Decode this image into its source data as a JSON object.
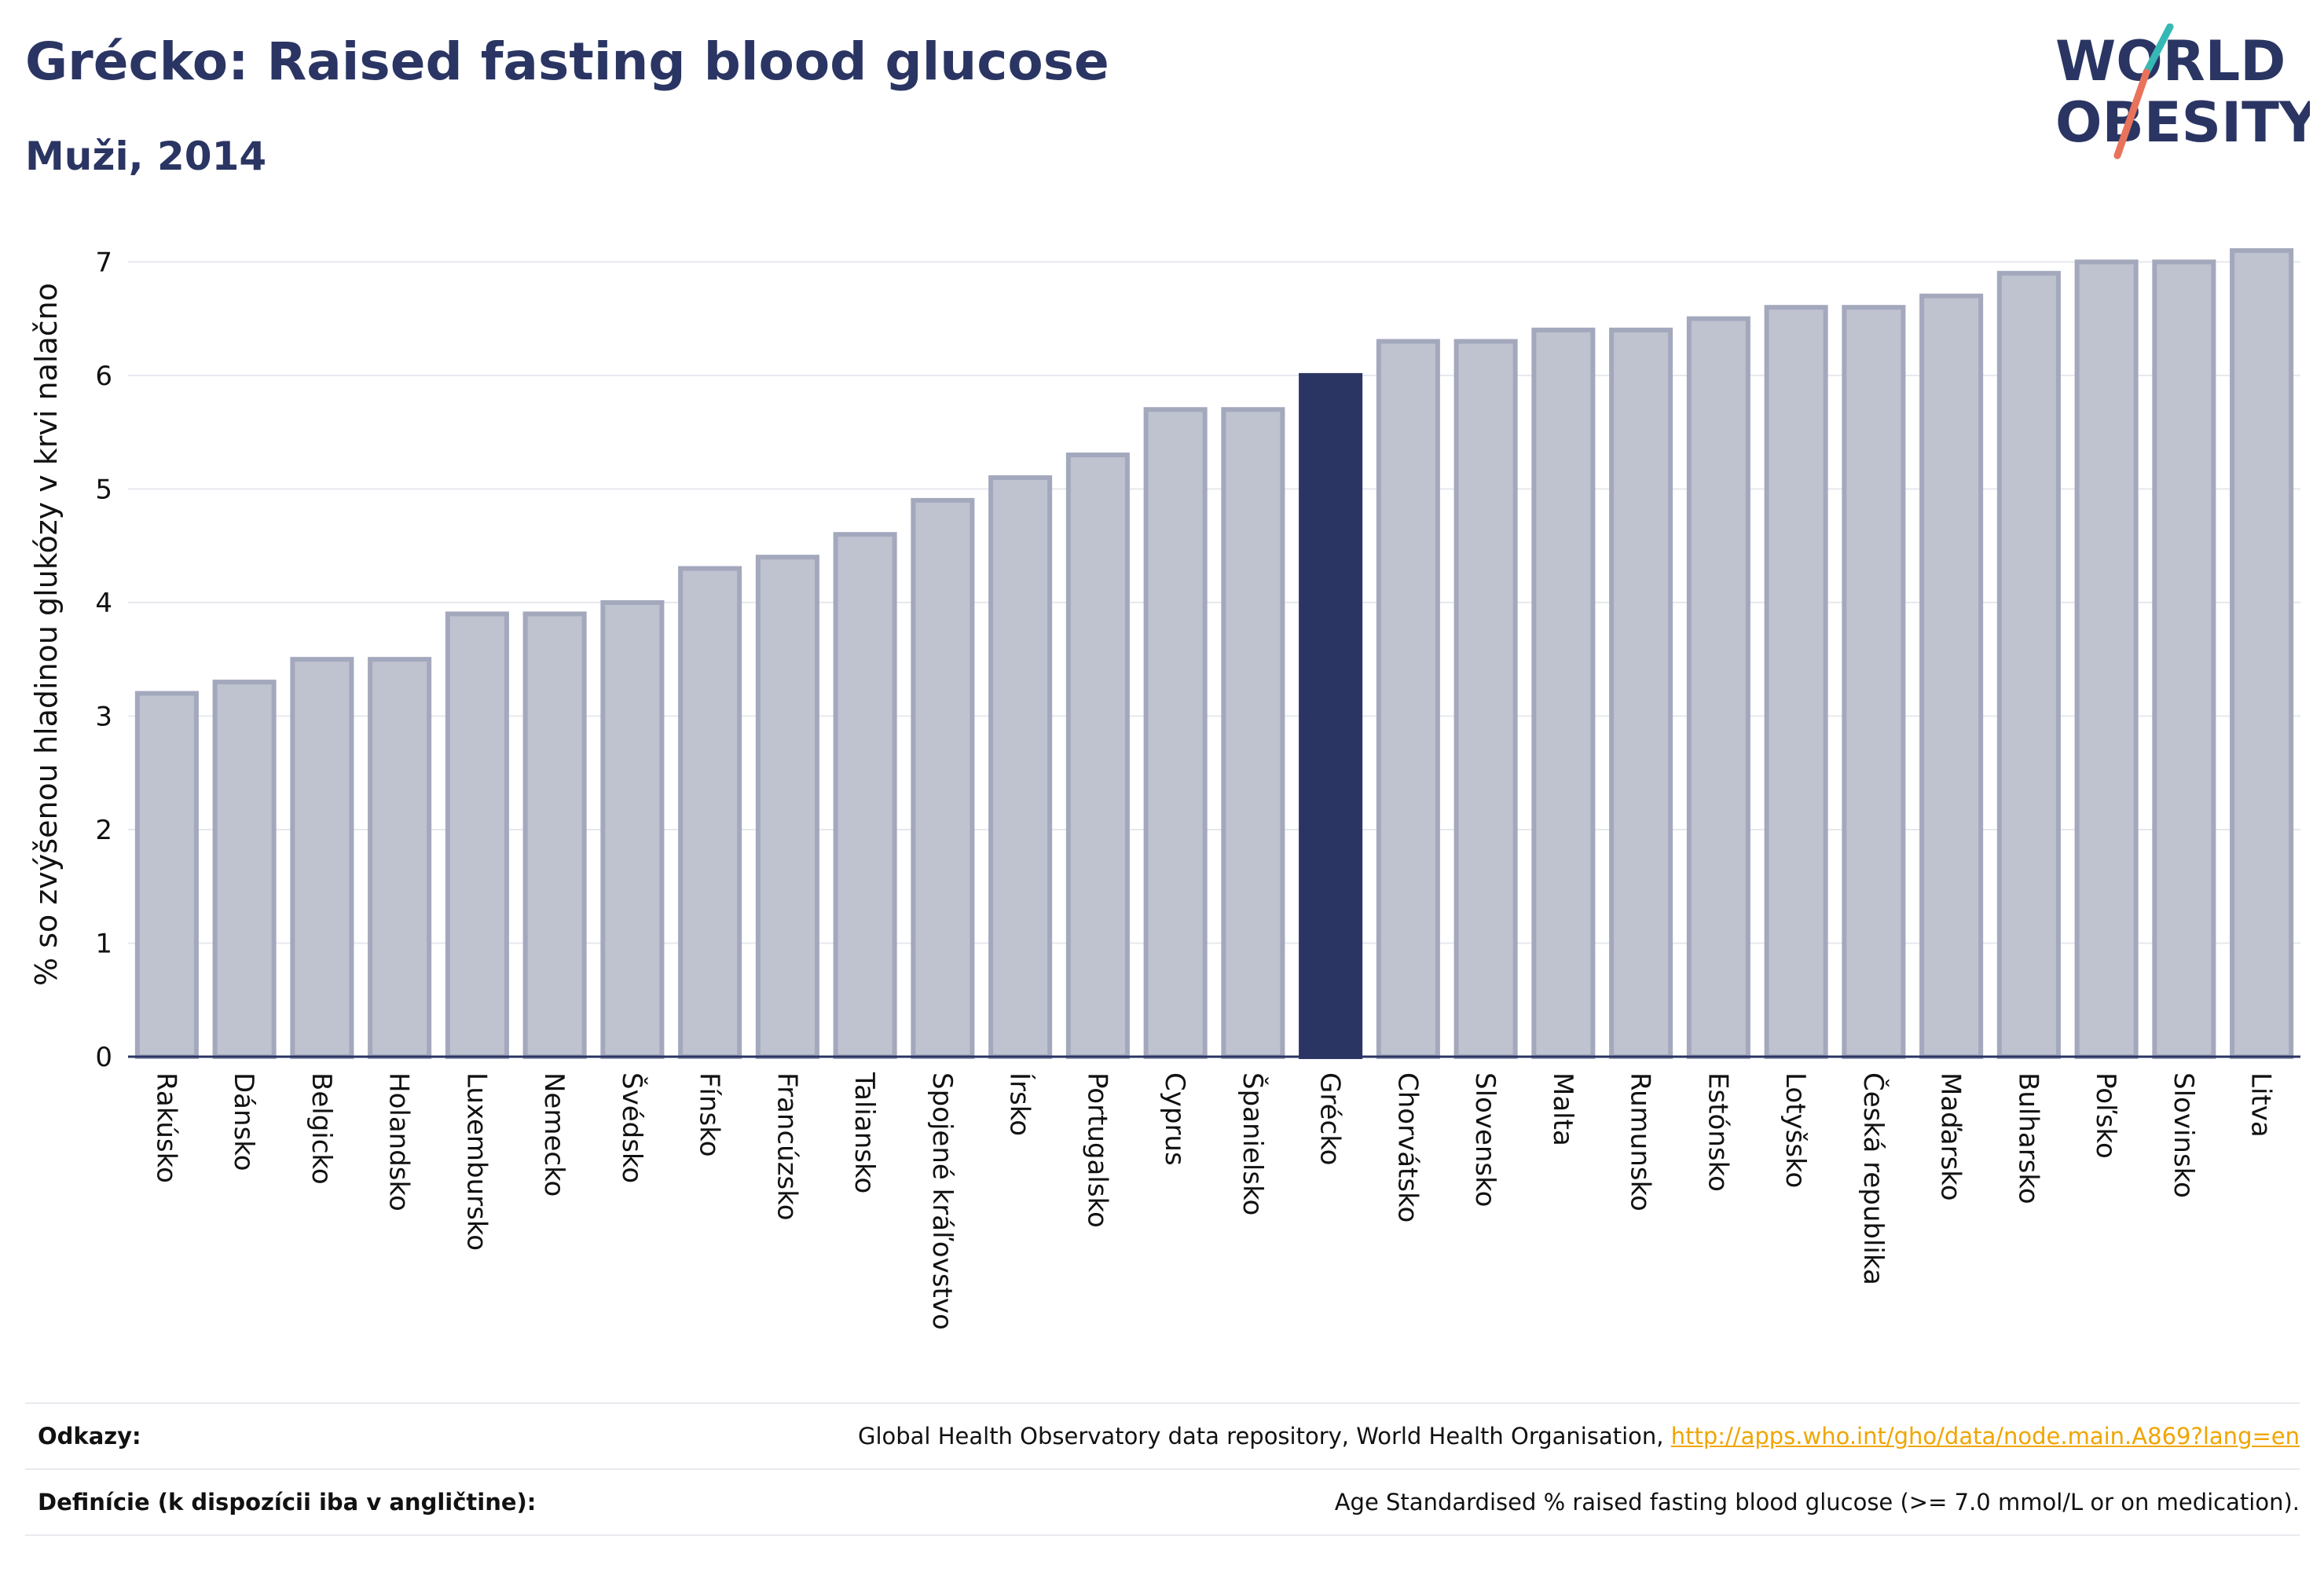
{
  "header": {
    "title": "Grécko: Raised fasting blood glucose",
    "subtitle": "Muži, 2014"
  },
  "logo": {
    "line1": "WORLD",
    "line2": "OBESITY",
    "accent_teal": "#36b8b4",
    "accent_red": "#e8735a",
    "color": "#2a3563"
  },
  "colors": {
    "bar": "#bfc2cf",
    "bar_border": "#a3a8bd",
    "highlight": "#2a3563",
    "grid": "#e6e8ee",
    "axis": "#2a3563"
  },
  "chart_data": {
    "type": "bar",
    "ylabel": "% so zvýšenou hladinou glukózy v krvi nalačno",
    "ylim": [
      0,
      7.3
    ],
    "yticks": [
      0,
      1,
      2,
      3,
      4,
      5,
      6,
      7
    ],
    "highlight": "Grécko",
    "grid": true,
    "categories": [
      "Rakúsko",
      "Dánsko",
      "Belgicko",
      "Holandsko",
      "Luxembursko",
      "Nemecko",
      "Švédsko",
      "Fínsko",
      "Francúzsko",
      "Taliansko",
      "Spojené kráľovstvo",
      "Írsko",
      "Portugalsko",
      "Cyprus",
      "Španielsko",
      "Grécko",
      "Chorvátsko",
      "Slovensko",
      "Malta",
      "Rumunsko",
      "Estónsko",
      "Lotyšsko",
      "Česká republika",
      "Maďarsko",
      "Bulharsko",
      "Poľsko",
      "Slovinsko",
      "Litva"
    ],
    "values": [
      3.2,
      3.3,
      3.5,
      3.5,
      3.9,
      3.9,
      4.0,
      4.3,
      4.4,
      4.6,
      4.9,
      5.1,
      5.3,
      5.7,
      5.7,
      6.0,
      6.3,
      6.3,
      6.4,
      6.4,
      6.5,
      6.6,
      6.6,
      6.7,
      6.9,
      7.0,
      7.0,
      7.1
    ]
  },
  "footer": {
    "sources_label": "Odkazy:",
    "sources_text": "Global Health Observatory data repository, World Health Organisation, ",
    "sources_link": "http://apps.who.int/gho/data/node.main.A869?lang=en",
    "definitions_label": "Definície (k dispozícii iba v angličtine):",
    "definitions_text": "Age Standardised % raised fasting blood glucose (>= 7.0 mmol/L or on medication)."
  }
}
